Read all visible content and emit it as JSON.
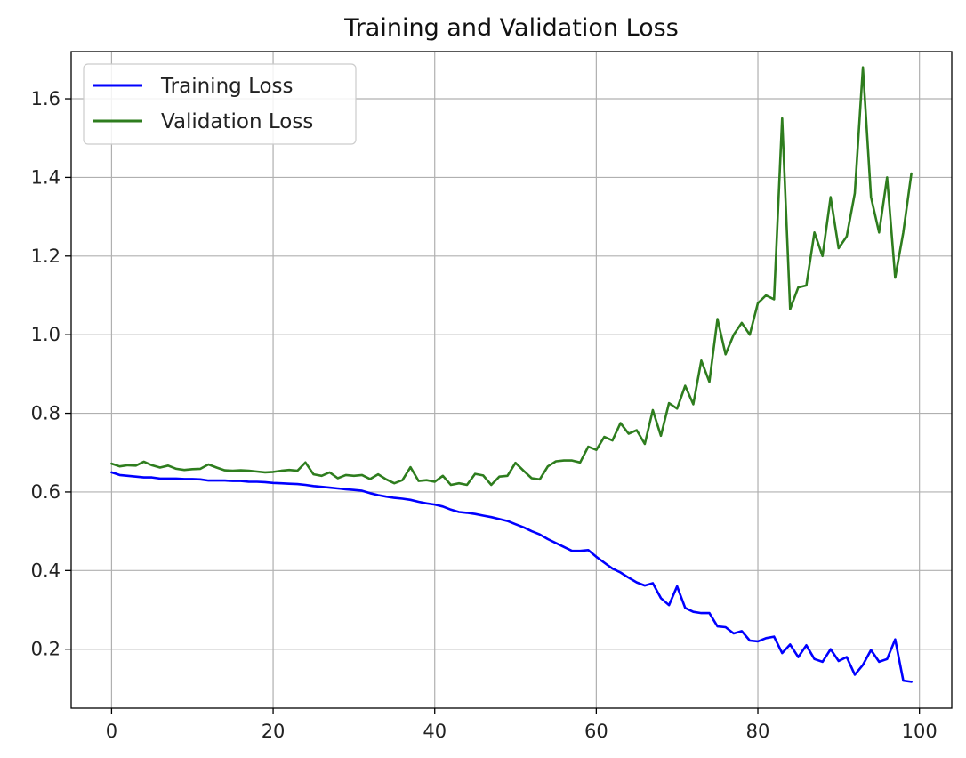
{
  "chart_data": {
    "type": "line",
    "title": "Training and Validation Loss",
    "xlabel": "",
    "ylabel": "",
    "xlim": [
      -5,
      104
    ],
    "ylim": [
      0.05,
      1.72
    ],
    "x_ticks": [
      0,
      20,
      40,
      60,
      80,
      100
    ],
    "y_ticks": [
      0.2,
      0.4,
      0.6,
      0.8,
      1.0,
      1.2,
      1.4,
      1.6
    ],
    "x_tick_labels": [
      "0",
      "20",
      "40",
      "60",
      "80",
      "100"
    ],
    "y_tick_labels": [
      "0.2",
      "0.4",
      "0.6",
      "0.8",
      "1.0",
      "1.2",
      "1.4",
      "1.6"
    ],
    "grid": true,
    "legend_position": "top-left",
    "colors": {
      "training": "#0000ff",
      "validation": "#2e7d1e"
    },
    "series": [
      {
        "name": "Training Loss",
        "color": "#0000ff",
        "x": [
          0,
          1,
          2,
          3,
          4,
          5,
          6,
          7,
          8,
          9,
          10,
          11,
          12,
          13,
          14,
          15,
          16,
          17,
          18,
          19,
          20,
          21,
          22,
          23,
          24,
          25,
          26,
          27,
          28,
          29,
          30,
          31,
          32,
          33,
          34,
          35,
          36,
          37,
          38,
          39,
          40,
          41,
          42,
          43,
          44,
          45,
          46,
          47,
          48,
          49,
          50,
          51,
          52,
          53,
          54,
          55,
          56,
          57,
          58,
          59,
          60,
          61,
          62,
          63,
          64,
          65,
          66,
          67,
          68,
          69,
          70,
          71,
          72,
          73,
          74,
          75,
          76,
          77,
          78,
          79,
          80,
          81,
          82,
          83,
          84,
          85,
          86,
          87,
          88,
          89,
          90,
          91,
          92,
          93,
          94,
          95,
          96,
          97,
          98,
          99
        ],
        "values": [
          0.65,
          0.643,
          0.641,
          0.639,
          0.637,
          0.637,
          0.634,
          0.634,
          0.634,
          0.633,
          0.633,
          0.632,
          0.629,
          0.629,
          0.629,
          0.628,
          0.628,
          0.626,
          0.626,
          0.625,
          0.623,
          0.622,
          0.621,
          0.62,
          0.618,
          0.615,
          0.613,
          0.611,
          0.609,
          0.607,
          0.605,
          0.603,
          0.597,
          0.592,
          0.588,
          0.585,
          0.583,
          0.58,
          0.575,
          0.571,
          0.568,
          0.563,
          0.555,
          0.549,
          0.547,
          0.544,
          0.54,
          0.536,
          0.531,
          0.526,
          0.518,
          0.51,
          0.5,
          0.492,
          0.48,
          0.47,
          0.46,
          0.45,
          0.45,
          0.452,
          0.435,
          0.42,
          0.405,
          0.395,
          0.382,
          0.37,
          0.362,
          0.368,
          0.33,
          0.312,
          0.36,
          0.305,
          0.295,
          0.292,
          0.292,
          0.258,
          0.256,
          0.24,
          0.246,
          0.222,
          0.22,
          0.228,
          0.232,
          0.19,
          0.212,
          0.18,
          0.21,
          0.175,
          0.168,
          0.2,
          0.17,
          0.18,
          0.135,
          0.16,
          0.198,
          0.168,
          0.175,
          0.225,
          0.12,
          0.117
        ]
      },
      {
        "name": "Validation Loss",
        "color": "#2e7d1e",
        "x": [
          0,
          1,
          2,
          3,
          4,
          5,
          6,
          7,
          8,
          9,
          10,
          11,
          12,
          13,
          14,
          15,
          16,
          17,
          18,
          19,
          20,
          21,
          22,
          23,
          24,
          25,
          26,
          27,
          28,
          29,
          30,
          31,
          32,
          33,
          34,
          35,
          36,
          37,
          38,
          39,
          40,
          41,
          42,
          43,
          44,
          45,
          46,
          47,
          48,
          49,
          50,
          51,
          52,
          53,
          54,
          55,
          56,
          57,
          58,
          59,
          60,
          61,
          62,
          63,
          64,
          65,
          66,
          67,
          68,
          69,
          70,
          71,
          72,
          73,
          74,
          75,
          76,
          77,
          78,
          79,
          80,
          81,
          82,
          83,
          84,
          85,
          86,
          87,
          88,
          89,
          90,
          91,
          92,
          93,
          94,
          95,
          96,
          97,
          98,
          99
        ],
        "values": [
          0.672,
          0.665,
          0.668,
          0.667,
          0.677,
          0.668,
          0.662,
          0.667,
          0.659,
          0.656,
          0.658,
          0.659,
          0.67,
          0.662,
          0.655,
          0.654,
          0.655,
          0.654,
          0.652,
          0.65,
          0.651,
          0.654,
          0.656,
          0.654,
          0.675,
          0.645,
          0.641,
          0.65,
          0.635,
          0.643,
          0.641,
          0.643,
          0.633,
          0.645,
          0.632,
          0.622,
          0.63,
          0.663,
          0.628,
          0.63,
          0.626,
          0.641,
          0.618,
          0.622,
          0.618,
          0.646,
          0.642,
          0.618,
          0.639,
          0.641,
          0.674,
          0.654,
          0.635,
          0.632,
          0.665,
          0.678,
          0.68,
          0.68,
          0.675,
          0.715,
          0.707,
          0.74,
          0.731,
          0.775,
          0.748,
          0.757,
          0.722,
          0.808,
          0.743,
          0.826,
          0.812,
          0.87,
          0.823,
          0.934,
          0.88,
          1.04,
          0.95,
          1.0,
          1.03,
          1.0,
          1.08,
          1.1,
          1.09,
          1.55,
          1.065,
          1.12,
          1.125,
          1.26,
          1.2,
          1.35,
          1.22,
          1.25,
          1.36,
          1.68,
          1.35,
          1.26,
          1.4,
          1.145,
          1.26,
          1.41
        ]
      }
    ]
  }
}
